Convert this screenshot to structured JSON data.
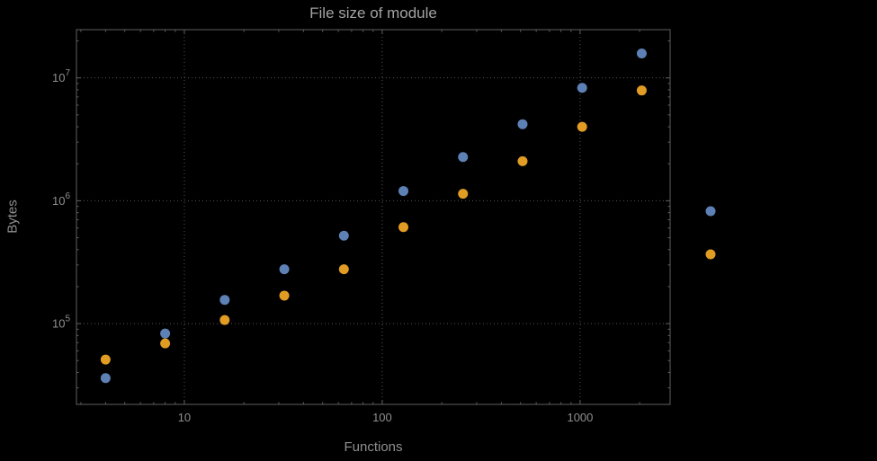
{
  "style": {
    "background": "#000000",
    "frame_color": "#5f5f5f",
    "grid_color": "#555555",
    "tick_label_color": "#8f8f8f",
    "title_color": "#a2a2a2",
    "axis_label_color": "#8f8f8f"
  },
  "chart_data": {
    "type": "scatter",
    "title": "File size of module",
    "xlabel": "Functions",
    "ylabel": "Bytes",
    "x_scale": "log",
    "y_scale": "log",
    "grid": "dotted",
    "xlim": [
      2.85,
      2850
    ],
    "ylim": [
      22000,
      24700000
    ],
    "x_ticks": [
      10,
      100,
      1000
    ],
    "x_tick_labels": [
      "10",
      "100",
      "1000"
    ],
    "y_ticks": [
      100000,
      1000000,
      10000000
    ],
    "y_tick_exponents": [
      5,
      6,
      7
    ],
    "x": [
      4,
      8,
      16,
      32,
      64,
      128,
      256,
      512,
      1024,
      2048
    ],
    "series": [
      {
        "name": "series-blue",
        "color": "#5E81B5",
        "values": [
          36000,
          83000,
          156000,
          277000,
          520000,
          1200000,
          2270000,
          4200000,
          8300000,
          15800000
        ]
      },
      {
        "name": "series-orange",
        "color": "#E19C24",
        "values": [
          51000,
          69000,
          107000,
          169000,
          277000,
          610000,
          1140000,
          2100000,
          4000000,
          7900000
        ]
      }
    ],
    "legend": {
      "labels_visible": false,
      "markers": [
        {
          "color": "#5E81B5"
        },
        {
          "color": "#E19C24"
        }
      ]
    }
  }
}
